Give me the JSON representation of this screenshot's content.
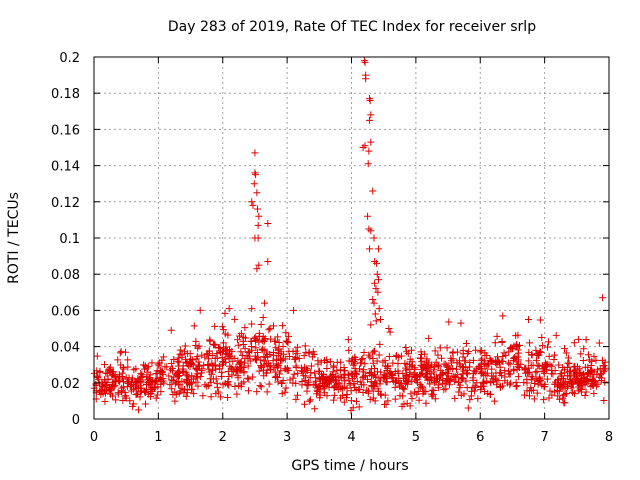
{
  "chart_data": {
    "type": "scatter",
    "title": "Day 283 of 2019, Rate Of TEC Index for receiver srlp",
    "xlabel": "GPS time / hours",
    "ylabel": "ROTI / TECUs",
    "xlim": [
      0,
      8
    ],
    "ylim": [
      0,
      0.2
    ],
    "x_ticks": [
      0,
      1,
      2,
      3,
      4,
      5,
      6,
      7,
      8
    ],
    "y_ticks": [
      0,
      0.02,
      0.04,
      0.06,
      0.08,
      0.1,
      0.12,
      0.14,
      0.16,
      0.18,
      0.2
    ],
    "x_tick_labels": [
      "0",
      "1",
      "2",
      "3",
      "4",
      "5",
      "6",
      "7",
      "8"
    ],
    "y_tick_labels": [
      "0",
      "0.02",
      "0.04",
      "0.06",
      "0.08",
      "0.1",
      "0.12",
      "0.14",
      "0.16",
      "0.18",
      "0.2"
    ],
    "grid": true,
    "marker": "+",
    "color": "#e00000",
    "series": [
      {
        "name": "ROTI",
        "points": [
          [
            2.45,
            0.12
          ],
          [
            2.47,
            0.118
          ],
          [
            2.5,
            0.147
          ],
          [
            2.5,
            0.136
          ],
          [
            2.51,
            0.135
          ],
          [
            2.49,
            0.13
          ],
          [
            2.53,
            0.125
          ],
          [
            2.54,
            0.116
          ],
          [
            2.56,
            0.112
          ],
          [
            2.55,
            0.107
          ],
          [
            2.5,
            0.1
          ],
          [
            2.55,
            0.1
          ],
          [
            2.56,
            0.085
          ],
          [
            2.53,
            0.083
          ],
          [
            2.7,
            0.108
          ],
          [
            2.7,
            0.087
          ],
          [
            2.65,
            0.064
          ],
          [
            2.45,
            0.061
          ],
          [
            4.2,
            0.198
          ],
          [
            4.21,
            0.197
          ],
          [
            4.22,
            0.19
          ],
          [
            4.22,
            0.188
          ],
          [
            4.28,
            0.177
          ],
          [
            4.29,
            0.176
          ],
          [
            4.3,
            0.168
          ],
          [
            4.28,
            0.165
          ],
          [
            4.21,
            0.151
          ],
          [
            4.3,
            0.153
          ],
          [
            4.18,
            0.15
          ],
          [
            4.27,
            0.148
          ],
          [
            4.26,
            0.141
          ],
          [
            4.33,
            0.126
          ],
          [
            4.25,
            0.112
          ],
          [
            4.27,
            0.105
          ],
          [
            4.3,
            0.104
          ],
          [
            4.35,
            0.1
          ],
          [
            4.28,
            0.094
          ],
          [
            4.42,
            0.094
          ],
          [
            4.36,
            0.087
          ],
          [
            4.39,
            0.086
          ],
          [
            4.4,
            0.08
          ],
          [
            4.42,
            0.077
          ],
          [
            4.36,
            0.075
          ],
          [
            4.38,
            0.072
          ],
          [
            4.41,
            0.07
          ],
          [
            4.33,
            0.066
          ],
          [
            4.35,
            0.064
          ],
          [
            4.43,
            0.061
          ],
          [
            4.37,
            0.058
          ],
          [
            4.45,
            0.055
          ],
          [
            4.3,
            0.052
          ],
          [
            7.9,
            0.067
          ],
          [
            1.2,
            0.049
          ],
          [
            1.65,
            0.06
          ],
          [
            2.1,
            0.061
          ],
          [
            3.1,
            0.06
          ],
          [
            4.58,
            0.05
          ],
          [
            4.6,
            0.048
          ],
          [
            5.7,
            0.053
          ],
          [
            6.35,
            0.057
          ],
          [
            6.75,
            0.055
          ],
          [
            7.85,
            0.042
          ]
        ]
      }
    ],
    "background_band": {
      "note": "dense cloud of low-level ROTI samples across the whole day",
      "anchors_x": [
        0,
        0.5,
        1,
        1.5,
        1.8,
        2.2,
        2.5,
        3,
        3.3,
        3.6,
        3.9,
        4.2,
        4.6,
        5,
        5.5,
        6,
        6.5,
        7,
        7.5,
        8
      ],
      "mean_y": [
        0.02,
        0.018,
        0.022,
        0.026,
        0.03,
        0.03,
        0.032,
        0.03,
        0.024,
        0.022,
        0.02,
        0.024,
        0.022,
        0.024,
        0.026,
        0.024,
        0.03,
        0.024,
        0.022,
        0.024
      ],
      "spread_y": [
        0.006,
        0.008,
        0.008,
        0.01,
        0.012,
        0.012,
        0.012,
        0.012,
        0.01,
        0.009,
        0.01,
        0.011,
        0.009,
        0.01,
        0.01,
        0.009,
        0.011,
        0.009,
        0.007,
        0.008
      ],
      "count": 1500
    }
  }
}
